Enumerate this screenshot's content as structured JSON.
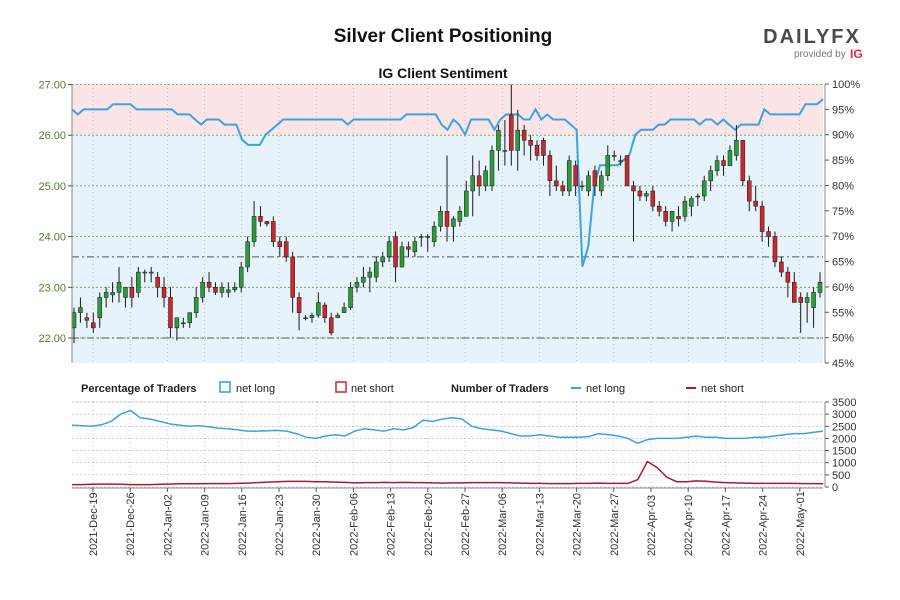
{
  "page": {
    "title": "Silver Client Positioning",
    "subtitle": "IG Client Sentiment"
  },
  "branding": {
    "logo_text": "DAILYFX",
    "provided_by": "provided by",
    "ig_mark": "IG"
  },
  "legend": {
    "pct_heading": "Percentage of Traders",
    "num_heading": "Number of Traders",
    "net_long": "net long",
    "net_short": "net short"
  },
  "colors": {
    "long": "#3aa3e3",
    "short": "#d62f3c",
    "bull": "#2e9a3a",
    "bear": "#c8282e",
    "long_zone": "#e6f3fb",
    "short_zone": "#fbe4e6",
    "grid_green": "#6f9a4a"
  },
  "chart_data": {
    "type": "candlestick",
    "x_tick_labels": [
      "2021-Dec-19",
      "2021-Dec-26",
      "2022-Jan-02",
      "2022-Jan-09",
      "2022-Jan-16",
      "2022-Jan-23",
      "2022-Jan-30",
      "2022-Feb-06",
      "2022-Feb-13",
      "2022-Feb-20",
      "2022-Feb-27",
      "2022-Mar-06",
      "2022-Mar-13",
      "2022-Mar-20",
      "2022-Mar-27",
      "2022-Apr-03",
      "2022-Apr-10",
      "2022-Apr-17",
      "2022-Apr-24",
      "2022-May-01"
    ],
    "price_axis": {
      "ticks": [
        "22.00",
        "23.00",
        "24.00",
        "25.00",
        "26.00",
        "27.00"
      ],
      "ylim": [
        21.5,
        27.0
      ]
    },
    "pct_axis": {
      "ticks": [
        "45%",
        "50%",
        "55%",
        "60%",
        "65%",
        "70%",
        "75%",
        "80%",
        "85%",
        "90%",
        "95%",
        "100%"
      ],
      "ylim": [
        45,
        100
      ]
    },
    "traders_axis": {
      "ticks": [
        "0",
        "500",
        "1000",
        "1500",
        "2000",
        "2500",
        "3000",
        "3500"
      ],
      "ylim": [
        0,
        3500
      ]
    },
    "reference_lines": {
      "price": [
        22.0,
        23.6
      ]
    },
    "candles": [
      {
        "o": 22.2,
        "h": 22.6,
        "l": 21.9,
        "c": 22.5
      },
      {
        "o": 22.5,
        "h": 22.8,
        "l": 22.3,
        "c": 22.6
      },
      {
        "o": 22.4,
        "h": 22.5,
        "l": 22.2,
        "c": 22.35
      },
      {
        "o": 22.3,
        "h": 22.5,
        "l": 22.1,
        "c": 22.2
      },
      {
        "o": 22.4,
        "h": 22.9,
        "l": 22.2,
        "c": 22.8
      },
      {
        "o": 22.8,
        "h": 23.0,
        "l": 22.6,
        "c": 22.9
      },
      {
        "o": 22.85,
        "h": 23.1,
        "l": 22.7,
        "c": 22.9
      },
      {
        "o": 22.9,
        "h": 23.4,
        "l": 22.7,
        "c": 23.1
      },
      {
        "o": 22.8,
        "h": 23.0,
        "l": 22.6,
        "c": 23.0
      },
      {
        "o": 23.0,
        "h": 23.2,
        "l": 22.6,
        "c": 22.8
      },
      {
        "o": 22.9,
        "h": 23.4,
        "l": 22.8,
        "c": 23.3
      },
      {
        "o": 23.3,
        "h": 23.35,
        "l": 23.1,
        "c": 23.3
      },
      {
        "o": 23.3,
        "h": 23.4,
        "l": 23.1,
        "c": 23.3
      },
      {
        "o": 23.2,
        "h": 23.3,
        "l": 22.8,
        "c": 23.0
      },
      {
        "o": 23.0,
        "h": 23.2,
        "l": 22.6,
        "c": 22.8
      },
      {
        "o": 22.8,
        "h": 23.0,
        "l": 22.0,
        "c": 22.2
      },
      {
        "o": 22.2,
        "h": 22.4,
        "l": 21.95,
        "c": 22.4
      },
      {
        "o": 22.3,
        "h": 22.4,
        "l": 22.2,
        "c": 22.3
      },
      {
        "o": 22.3,
        "h": 22.5,
        "l": 22.2,
        "c": 22.5
      },
      {
        "o": 22.5,
        "h": 23.0,
        "l": 22.4,
        "c": 22.8
      },
      {
        "o": 22.8,
        "h": 23.2,
        "l": 22.7,
        "c": 23.1
      },
      {
        "o": 23.1,
        "h": 23.3,
        "l": 22.9,
        "c": 23.0
      },
      {
        "o": 23.0,
        "h": 23.1,
        "l": 22.85,
        "c": 22.9
      },
      {
        "o": 22.9,
        "h": 23.1,
        "l": 22.8,
        "c": 23.0
      },
      {
        "o": 22.9,
        "h": 23.1,
        "l": 22.8,
        "c": 22.95
      },
      {
        "o": 22.95,
        "h": 23.1,
        "l": 22.9,
        "c": 23.0
      },
      {
        "o": 23.0,
        "h": 23.5,
        "l": 22.9,
        "c": 23.4
      },
      {
        "o": 23.4,
        "h": 24.0,
        "l": 23.3,
        "c": 23.9
      },
      {
        "o": 23.9,
        "h": 24.7,
        "l": 23.8,
        "c": 24.4
      },
      {
        "o": 24.4,
        "h": 24.6,
        "l": 24.2,
        "c": 24.3
      },
      {
        "o": 24.3,
        "h": 24.3,
        "l": 24.2,
        "c": 24.25
      },
      {
        "o": 24.3,
        "h": 24.4,
        "l": 23.8,
        "c": 23.9
      },
      {
        "o": 23.9,
        "h": 24.0,
        "l": 23.6,
        "c": 23.8
      },
      {
        "o": 23.9,
        "h": 24.0,
        "l": 23.5,
        "c": 23.6
      },
      {
        "o": 23.6,
        "h": 23.7,
        "l": 22.5,
        "c": 22.8
      },
      {
        "o": 22.8,
        "h": 22.9,
        "l": 22.15,
        "c": 22.5
      },
      {
        "o": 22.4,
        "h": 22.45,
        "l": 22.35,
        "c": 22.4
      },
      {
        "o": 22.4,
        "h": 22.5,
        "l": 22.3,
        "c": 22.45
      },
      {
        "o": 22.45,
        "h": 22.9,
        "l": 22.4,
        "c": 22.7
      },
      {
        "o": 22.65,
        "h": 22.7,
        "l": 22.3,
        "c": 22.4
      },
      {
        "o": 22.4,
        "h": 22.5,
        "l": 22.05,
        "c": 22.1
      },
      {
        "o": 22.4,
        "h": 22.5,
        "l": 22.4,
        "c": 22.45
      },
      {
        "o": 22.5,
        "h": 22.7,
        "l": 22.5,
        "c": 22.6
      },
      {
        "o": 22.6,
        "h": 23.1,
        "l": 22.55,
        "c": 23.0
      },
      {
        "o": 23.0,
        "h": 23.2,
        "l": 22.9,
        "c": 23.1
      },
      {
        "o": 23.1,
        "h": 23.4,
        "l": 23.0,
        "c": 23.2
      },
      {
        "o": 23.2,
        "h": 23.4,
        "l": 22.9,
        "c": 23.3
      },
      {
        "o": 23.2,
        "h": 23.6,
        "l": 23.1,
        "c": 23.5
      },
      {
        "o": 23.5,
        "h": 23.7,
        "l": 23.4,
        "c": 23.6
      },
      {
        "o": 23.6,
        "h": 24.0,
        "l": 23.5,
        "c": 23.9
      },
      {
        "o": 24.0,
        "h": 24.1,
        "l": 23.1,
        "c": 23.4
      },
      {
        "o": 23.4,
        "h": 23.9,
        "l": 23.4,
        "c": 23.8
      },
      {
        "o": 23.8,
        "h": 23.9,
        "l": 23.6,
        "c": 23.75
      },
      {
        "o": 23.7,
        "h": 24.0,
        "l": 23.6,
        "c": 23.9
      },
      {
        "o": 24.0,
        "h": 24.05,
        "l": 23.8,
        "c": 24.0
      },
      {
        "o": 24.0,
        "h": 24.05,
        "l": 23.7,
        "c": 24.0
      },
      {
        "o": 23.9,
        "h": 24.3,
        "l": 23.8,
        "c": 24.2
      },
      {
        "o": 24.2,
        "h": 24.6,
        "l": 24.1,
        "c": 24.5
      },
      {
        "o": 24.5,
        "h": 25.6,
        "l": 23.9,
        "c": 24.2
      },
      {
        "o": 24.2,
        "h": 24.4,
        "l": 23.9,
        "c": 24.35
      },
      {
        "o": 24.3,
        "h": 24.6,
        "l": 24.2,
        "c": 24.5
      },
      {
        "o": 24.4,
        "h": 25.1,
        "l": 24.4,
        "c": 24.9
      },
      {
        "o": 24.9,
        "h": 25.6,
        "l": 24.4,
        "c": 25.2
      },
      {
        "o": 25.2,
        "h": 25.5,
        "l": 24.8,
        "c": 25.0
      },
      {
        "o": 25.0,
        "h": 25.4,
        "l": 24.9,
        "c": 25.3
      },
      {
        "o": 25.0,
        "h": 25.8,
        "l": 24.9,
        "c": 25.7
      },
      {
        "o": 25.7,
        "h": 26.2,
        "l": 25.3,
        "c": 26.1
      },
      {
        "o": 25.7,
        "h": 26.3,
        "l": 25.4,
        "c": 25.7
      },
      {
        "o": 26.4,
        "h": 27.0,
        "l": 25.4,
        "c": 25.7
      },
      {
        "o": 25.7,
        "h": 26.5,
        "l": 25.3,
        "c": 26.1
      },
      {
        "o": 26.1,
        "h": 26.2,
        "l": 25.6,
        "c": 25.9
      },
      {
        "o": 25.9,
        "h": 26.0,
        "l": 25.5,
        "c": 25.8
      },
      {
        "o": 25.8,
        "h": 25.9,
        "l": 25.5,
        "c": 25.6
      },
      {
        "o": 25.9,
        "h": 25.95,
        "l": 25.4,
        "c": 25.6
      },
      {
        "o": 25.6,
        "h": 25.7,
        "l": 24.8,
        "c": 25.1
      },
      {
        "o": 25.1,
        "h": 25.4,
        "l": 24.9,
        "c": 25.0
      },
      {
        "o": 25.0,
        "h": 25.1,
        "l": 24.8,
        "c": 24.9
      },
      {
        "o": 24.9,
        "h": 25.6,
        "l": 24.8,
        "c": 25.5
      },
      {
        "o": 25.4,
        "h": 25.5,
        "l": 24.8,
        "c": 25.0
      },
      {
        "o": 25.0,
        "h": 25.1,
        "l": 24.9,
        "c": 25.0
      },
      {
        "o": 24.9,
        "h": 25.3,
        "l": 24.8,
        "c": 25.2
      },
      {
        "o": 25.3,
        "h": 25.4,
        "l": 24.8,
        "c": 25.0
      },
      {
        "o": 24.9,
        "h": 25.3,
        "l": 24.8,
        "c": 25.2
      },
      {
        "o": 25.2,
        "h": 25.8,
        "l": 25.1,
        "c": 25.6
      },
      {
        "o": 25.6,
        "h": 25.7,
        "l": 25.5,
        "c": 25.6
      },
      {
        "o": 25.5,
        "h": 25.6,
        "l": 25.4,
        "c": 25.5
      },
      {
        "o": 25.6,
        "h": 25.6,
        "l": 25.0,
        "c": 25.0
      },
      {
        "o": 25.0,
        "h": 25.1,
        "l": 23.9,
        "c": 24.9
      },
      {
        "o": 24.9,
        "h": 25.0,
        "l": 24.7,
        "c": 24.8
      },
      {
        "o": 24.8,
        "h": 24.9,
        "l": 24.7,
        "c": 24.85
      },
      {
        "o": 24.9,
        "h": 25.0,
        "l": 24.5,
        "c": 24.6
      },
      {
        "o": 24.6,
        "h": 24.7,
        "l": 24.4,
        "c": 24.5
      },
      {
        "o": 24.5,
        "h": 24.6,
        "l": 24.2,
        "c": 24.3
      },
      {
        "o": 24.3,
        "h": 24.5,
        "l": 24.1,
        "c": 24.5
      },
      {
        "o": 24.4,
        "h": 24.6,
        "l": 24.2,
        "c": 24.35
      },
      {
        "o": 24.4,
        "h": 24.8,
        "l": 24.3,
        "c": 24.7
      },
      {
        "o": 24.6,
        "h": 24.8,
        "l": 24.4,
        "c": 24.75
      },
      {
        "o": 24.8,
        "h": 24.85,
        "l": 24.6,
        "c": 24.8
      },
      {
        "o": 24.8,
        "h": 25.2,
        "l": 24.7,
        "c": 25.1
      },
      {
        "o": 25.1,
        "h": 25.4,
        "l": 24.9,
        "c": 25.3
      },
      {
        "o": 25.3,
        "h": 25.6,
        "l": 25.2,
        "c": 25.5
      },
      {
        "o": 25.5,
        "h": 25.6,
        "l": 25.2,
        "c": 25.4
      },
      {
        "o": 25.4,
        "h": 25.8,
        "l": 25.4,
        "c": 25.7
      },
      {
        "o": 25.6,
        "h": 26.2,
        "l": 25.5,
        "c": 25.9
      },
      {
        "o": 25.9,
        "h": 25.9,
        "l": 25.0,
        "c": 25.1
      },
      {
        "o": 25.1,
        "h": 25.2,
        "l": 24.5,
        "c": 24.7
      },
      {
        "o": 24.7,
        "h": 25.0,
        "l": 24.5,
        "c": 24.6
      },
      {
        "o": 24.6,
        "h": 24.7,
        "l": 23.9,
        "c": 24.1
      },
      {
        "o": 24.1,
        "h": 24.2,
        "l": 23.8,
        "c": 24.0
      },
      {
        "o": 24.0,
        "h": 24.1,
        "l": 23.4,
        "c": 23.5
      },
      {
        "o": 23.5,
        "h": 23.6,
        "l": 23.2,
        "c": 23.3
      },
      {
        "o": 23.3,
        "h": 23.4,
        "l": 22.8,
        "c": 23.1
      },
      {
        "o": 23.1,
        "h": 23.3,
        "l": 22.7,
        "c": 22.7
      },
      {
        "o": 22.8,
        "h": 22.9,
        "l": 22.1,
        "c": 22.7
      },
      {
        "o": 22.7,
        "h": 22.9,
        "l": 22.3,
        "c": 22.8
      },
      {
        "o": 22.6,
        "h": 23.0,
        "l": 22.2,
        "c": 22.9
      },
      {
        "o": 22.9,
        "h": 23.3,
        "l": 22.8,
        "c": 23.1
      }
    ],
    "net_long_pct": [
      95,
      94,
      95,
      95,
      95,
      95,
      95,
      96,
      96,
      96,
      96,
      95,
      95,
      95,
      95,
      95,
      95,
      95,
      94,
      94,
      94,
      93,
      92,
      93,
      93,
      93,
      92,
      92,
      92,
      89,
      88,
      88,
      88,
      90,
      91,
      92,
      93,
      93,
      93,
      93,
      93,
      93,
      93,
      93,
      93,
      93,
      93,
      92,
      93,
      93,
      93,
      93,
      93,
      93,
      93,
      93,
      93,
      94,
      94,
      94,
      94,
      94,
      94,
      92,
      91,
      93,
      92,
      90,
      93,
      93,
      93,
      93,
      91,
      93,
      94,
      94,
      94,
      93,
      93,
      95,
      93,
      94,
      93,
      93,
      93,
      92,
      91,
      64,
      68,
      80,
      84,
      84,
      84,
      84,
      85,
      86,
      90,
      91,
      91,
      91,
      92,
      92,
      93,
      93,
      93,
      93,
      93,
      92,
      93,
      93,
      92,
      93,
      92,
      91,
      92,
      92,
      92,
      92,
      95,
      94,
      94,
      94,
      94,
      94,
      94,
      96,
      96,
      96,
      97
    ],
    "traders_long": [
      2550,
      2520,
      2500,
      2560,
      2700,
      3000,
      3150,
      2850,
      2800,
      2700,
      2600,
      2550,
      2500,
      2520,
      2480,
      2420,
      2400,
      2350,
      2300,
      2300,
      2320,
      2330,
      2300,
      2200,
      2050,
      2000,
      2100,
      2150,
      2100,
      2300,
      2400,
      2350,
      2300,
      2400,
      2350,
      2450,
      2750,
      2700,
      2800,
      2850,
      2800,
      2500,
      2400,
      2350,
      2300,
      2200,
      2100,
      2100,
      2150,
      2100,
      2050,
      2050,
      2050,
      2080,
      2200,
      2150,
      2100,
      2000,
      1800,
      1950,
      2000,
      2000,
      2000,
      2050,
      2100,
      2050,
      2050,
      2000,
      2000,
      2000,
      2050,
      2050,
      2100,
      2150,
      2200,
      2200,
      2250,
      2300
    ],
    "traders_short": [
      100,
      100,
      110,
      120,
      120,
      110,
      100,
      100,
      100,
      110,
      120,
      130,
      130,
      130,
      140,
      140,
      140,
      150,
      160,
      180,
      200,
      220,
      230,
      230,
      230,
      220,
      220,
      200,
      190,
      170,
      180,
      180,
      190,
      180,
      190,
      180,
      180,
      170,
      160,
      170,
      170,
      180,
      180,
      180,
      180,
      170,
      160,
      150,
      150,
      140,
      140,
      140,
      150,
      150,
      160,
      150,
      150,
      150,
      300,
      1050,
      800,
      400,
      220,
      220,
      250,
      240,
      200,
      180,
      170,
      160,
      150,
      150,
      150,
      150,
      150,
      140,
      140,
      130
    ]
  }
}
